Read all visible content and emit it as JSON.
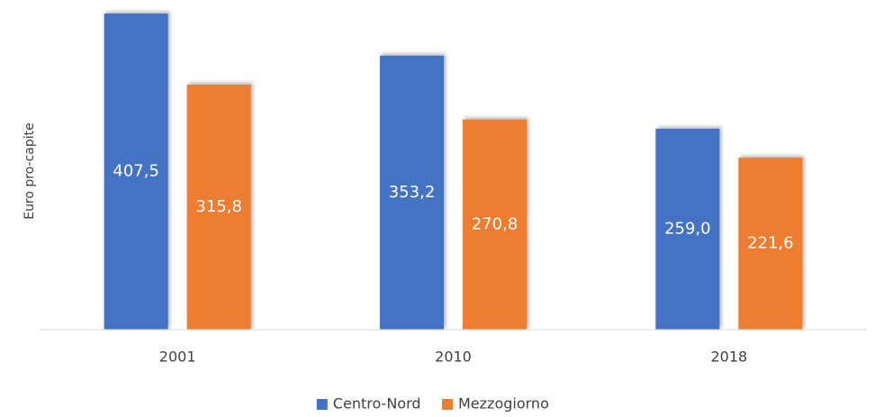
{
  "chart_data": {
    "type": "bar",
    "y_label": "Euro pro-capite",
    "categories": [
      "2001",
      "2010",
      "2018"
    ],
    "series": [
      {
        "name": "Centro-Nord",
        "color": "#4472c4",
        "values": [
          407.5,
          353.2,
          259.0
        ],
        "value_labels": [
          "407,5",
          "353,2",
          "259,0"
        ]
      },
      {
        "name": "Mezzogiorno",
        "color": "#ed7d31",
        "values": [
          315.8,
          270.8,
          221.6
        ],
        "value_labels": [
          "315,8",
          "270,8",
          "221,6"
        ]
      }
    ],
    "ylim": [
      0,
      425
    ],
    "grid": false,
    "legend": "bottom"
  }
}
